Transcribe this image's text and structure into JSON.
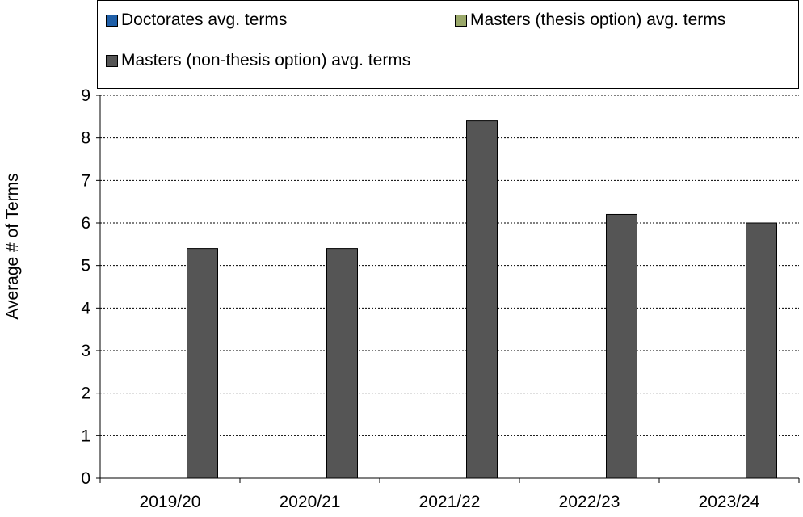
{
  "chart_data": {
    "type": "bar",
    "categories": [
      "2019/20",
      "2020/21",
      "2021/22",
      "2022/23",
      "2023/24"
    ],
    "series": [
      {
        "name": "Doctorates avg. terms",
        "color": "#1f5fa8",
        "values": [
          null,
          null,
          null,
          null,
          null
        ]
      },
      {
        "name": "Masters (thesis option) avg. terms",
        "color": "#9aa86a",
        "values": [
          null,
          null,
          null,
          null,
          null
        ]
      },
      {
        "name": "Masters (non-thesis option) avg. terms",
        "color": "#555555",
        "values": [
          5.4,
          5.4,
          8.4,
          6.2,
          6.0
        ]
      }
    ],
    "ylabel": "Average # of Terms",
    "xlabel": "",
    "ylim": [
      0,
      9
    ],
    "yticks": [
      "0",
      "1",
      "2",
      "3",
      "4",
      "5",
      "6",
      "7",
      "8",
      "9"
    ],
    "grid": "horizontal dotted",
    "legend_position": "top"
  }
}
